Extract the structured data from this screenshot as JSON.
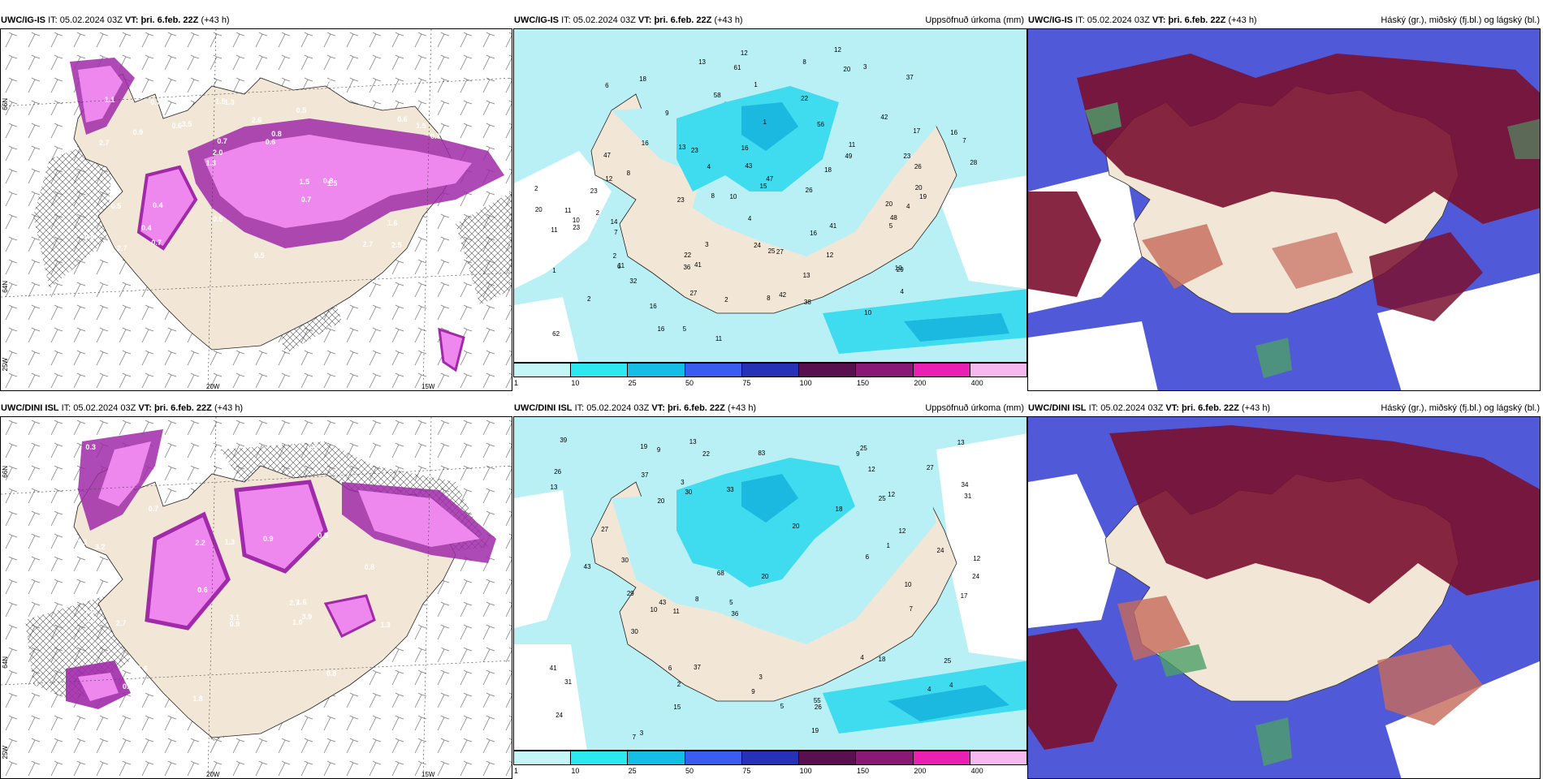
{
  "panels": [
    {
      "id": "top-left",
      "model": "UWC/IG-IS",
      "it_label": "IT:",
      "it_value": "05.02.2024 03Z",
      "vt_label": "VT:",
      "vt_value": "þri. 6.feb. 22Z",
      "lead": "(+43 h)",
      "right_title": "",
      "lat_labels": [
        "66N",
        "64N",
        "25W"
      ],
      "lon_labels": [
        "20W",
        "15W"
      ],
      "values": [
        "2.5",
        "2.7",
        "3.1",
        "1.3",
        "0.5",
        "2.7",
        "1.5",
        "2.6",
        "0.5",
        "3.5",
        "0.6",
        "0.4",
        "1.3",
        "0.8",
        "1.5",
        "1.1",
        "0.5",
        "0.7",
        "1.5",
        "0.6",
        "2.0",
        "0.9",
        "0.7",
        "0.7",
        "3.1",
        "0.4",
        "2.7",
        "1.6",
        "0.8",
        "0.5",
        "0.6",
        "0.9",
        "0.7",
        "0.7",
        "1.5",
        "0.6"
      ]
    },
    {
      "id": "top-middle",
      "model": "UWC/IG-IS",
      "it_label": "IT:",
      "it_value": "05.02.2024 03Z",
      "vt_label": "VT:",
      "vt_value": "þri. 6.feb. 22Z",
      "lead": "(+43 h)",
      "right_title": "Uppsöfnuð úrkoma (mm)",
      "values": [
        "2",
        "3",
        "18",
        "42",
        "25",
        "8",
        "7",
        "11",
        "17",
        "11",
        "11",
        "12",
        "12",
        "15",
        "11",
        "13",
        "4",
        "2",
        "6",
        "5",
        "38",
        "61",
        "58",
        "47",
        "43",
        "27",
        "10",
        "8",
        "1",
        "41",
        "47",
        "32",
        "42",
        "24",
        "29",
        "23",
        "16",
        "26",
        "56",
        "48",
        "7",
        "1",
        "2",
        "14",
        "20",
        "12",
        "16",
        "8",
        "22",
        "13",
        "23",
        "16",
        "16",
        "26",
        "23",
        "27",
        "13",
        "10",
        "6",
        "23",
        "62",
        "12",
        "22",
        "8",
        "3",
        "1",
        "2",
        "18",
        "4",
        "10",
        "5",
        "16",
        "4",
        "2",
        "20",
        "4",
        "11",
        "10",
        "36",
        "37",
        "20",
        "9",
        "23",
        "16",
        "49",
        "41",
        "28",
        "19",
        "20"
      ]
    },
    {
      "id": "top-right",
      "model": "UWC/IG-IS",
      "it_label": "IT:",
      "it_value": "05.02.2024 03Z",
      "vt_label": "VT:",
      "vt_value": "þri. 6.feb. 22Z",
      "lead": "(+43 h)",
      "right_title": "Háský (gr.), miðský (fj.bl.) og lágský (bl.)"
    },
    {
      "id": "bottom-left",
      "model": "UWC/DINI ISL",
      "it_label": "IT:",
      "it_value": "05.02.2024 03Z",
      "vt_label": "VT:",
      "vt_value": "þri. 6.feb. 22Z",
      "lead": "(+43 h)",
      "right_title": "",
      "lat_labels": [
        "66N",
        "64N",
        "25W"
      ],
      "lon_labels": [
        "20W",
        "15W"
      ],
      "values": [
        "3.9",
        "3.2",
        "2.1",
        "1.0",
        "0.6",
        "1.3",
        "0.8",
        "1.6",
        "2.2",
        "0.9",
        "1.6",
        "2.1",
        "2.7",
        "3.1",
        "1.3",
        "2.4",
        "0.5",
        "1.5",
        "1.8",
        "0.7",
        "1.0",
        "2.7",
        "0.9",
        "0.4",
        "0.3",
        "0.5",
        "0.8",
        "1.4"
      ]
    },
    {
      "id": "bottom-middle",
      "model": "UWC/DINI ISL",
      "it_label": "IT:",
      "it_value": "05.02.2024 03Z",
      "vt_label": "VT:",
      "vt_value": "þri. 6.feb. 22Z",
      "lead": "(+43 h)",
      "right_title": "Uppsöfnuð úrkoma (mm)",
      "values": [
        "7",
        "9",
        "3",
        "12",
        "7",
        "9",
        "5",
        "9",
        "24",
        "24",
        "29",
        "43",
        "30",
        "37",
        "83",
        "30",
        "26",
        "41",
        "27",
        "26",
        "19",
        "55",
        "68",
        "33",
        "12",
        "12",
        "17",
        "18",
        "31",
        "43",
        "10",
        "22",
        "20",
        "15",
        "13",
        "25",
        "20",
        "30",
        "25",
        "13",
        "10",
        "13",
        "6",
        "4",
        "3",
        "6",
        "8",
        "19",
        "24",
        "39",
        "25",
        "31",
        "11",
        "27",
        "34",
        "36",
        "37",
        "4",
        "1",
        "2",
        "3",
        "18",
        "4",
        "20",
        "5",
        "12"
      ]
    },
    {
      "id": "bottom-right",
      "model": "UWC/DINI ISL",
      "it_label": "IT:",
      "it_value": "05.02.2024 03Z",
      "vt_label": "VT:",
      "vt_value": "þri. 6.feb. 22Z",
      "lead": "(+43 h)",
      "right_title": "Háský (gr.), miðský (fj.bl.) og lágský (bl.)"
    }
  ],
  "legend": {
    "labels": [
      "1",
      "10",
      "25",
      "50",
      "75",
      "100",
      "150",
      "200",
      "400"
    ],
    "colors": [
      "#c4f5f7",
      "#2ee8f0",
      "#16bde6",
      "#3a5cf0",
      "#2631b8",
      "#5a0f4e",
      "#8a1876",
      "#ea1fb4",
      "#f7b8ef"
    ]
  },
  "colors": {
    "land": "#f2e6d6",
    "sea": "#ffffff",
    "precip_light": "#b8f0f5",
    "precip_mid": "#3fdcef",
    "precip_dark": "#1bb8e0",
    "snow_light": "#ee88ee",
    "snow_dark": "#a02aa8",
    "cloud_high": "#7a1030",
    "cloud_mid": "#5059d8",
    "cloud_low": "#c66a5a",
    "cloud_green": "#4ca068"
  }
}
